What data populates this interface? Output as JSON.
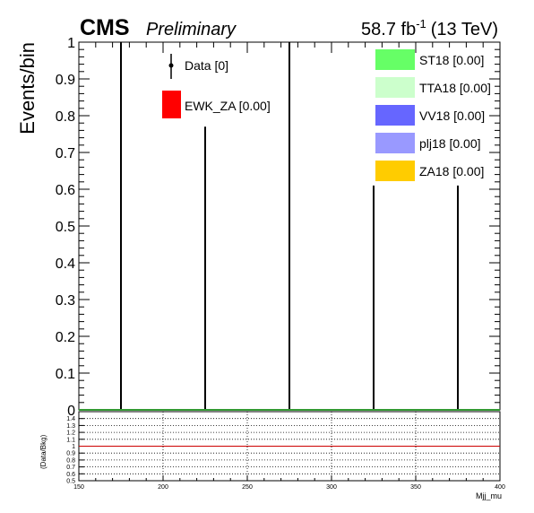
{
  "header": {
    "experiment": "CMS",
    "status": "Preliminary",
    "lumi_value": "58.7 fb",
    "lumi_exp": "-1",
    "lumi_energy": "(13 TeV)"
  },
  "chart_data": [
    {
      "type": "bar",
      "panel": "main",
      "ylabel": "Events/bin",
      "xlim": [
        150,
        400
      ],
      "ylim": [
        0,
        1
      ],
      "yticks": [
        "0",
        "0.1",
        "0.2",
        "0.3",
        "0.4",
        "0.5",
        "0.6",
        "0.7",
        "0.8",
        "0.9",
        "1"
      ],
      "vertical_lines": [
        {
          "x": 175,
          "top": 1.0
        },
        {
          "x": 225,
          "top": 0.77
        },
        {
          "x": 275,
          "top": 1.0
        },
        {
          "x": 325,
          "top": 0.61
        },
        {
          "x": 375,
          "top": 0.61
        }
      ],
      "legend": [
        {
          "label": "Data [0]",
          "style": "marker",
          "color": "#000000"
        },
        {
          "label": "EWK_ZA [0.00]",
          "style": "box",
          "color": "#ff0000"
        },
        {
          "label": "ST18 [0.00]",
          "style": "box",
          "color": "#66ff66"
        },
        {
          "label": "TTA18 [0.00]",
          "style": "box",
          "color": "#ccffcc"
        },
        {
          "label": "VV18 [0.00]",
          "style": "box",
          "color": "#6666ff"
        },
        {
          "label": "plj18 [0.00]",
          "style": "box",
          "color": "#9999ff"
        },
        {
          "label": "ZA18 [0.00]",
          "style": "box",
          "color": "#ffcc00"
        }
      ],
      "baseline_color": "#339933"
    },
    {
      "type": "line",
      "panel": "ratio",
      "ylabel": "(Data/Bkg)",
      "xlabel": "Mjj_mu",
      "xlim": [
        150,
        400
      ],
      "ylim": [
        0.5,
        1.5
      ],
      "xticks": [
        "150",
        "200",
        "250",
        "300",
        "350",
        "400"
      ],
      "yticks": [
        "0.5",
        "0.6",
        "0.7",
        "0.8",
        "0.9",
        "1",
        "1.1",
        "1.2",
        "1.3",
        "1.4"
      ],
      "grid": true,
      "reference_line": {
        "y": 1.0,
        "color": "#cc0000"
      }
    }
  ]
}
